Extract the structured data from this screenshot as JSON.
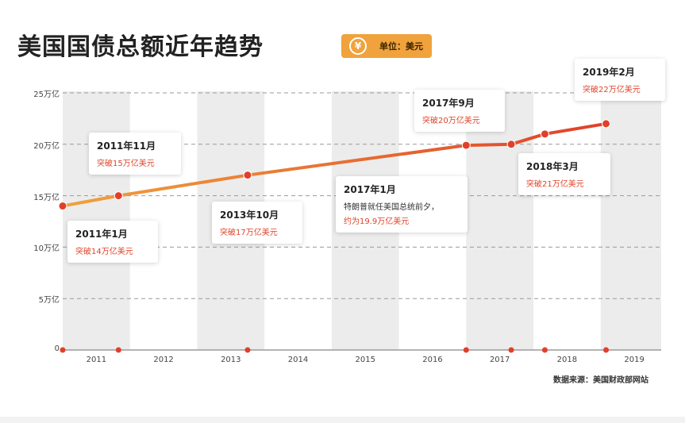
{
  "title": "美国国债总额近年趋势",
  "unit_badge": {
    "coin_icon": "¥",
    "label": "单位：美元",
    "color": "#f0a23c"
  },
  "source": "数据来源：美国财政部网站",
  "chart_data": {
    "type": "line",
    "title": "美国国债总额近年趋势",
    "xlabel": "",
    "ylabel": "",
    "x_ticks": [
      "2011",
      "2012",
      "2013",
      "2014",
      "2015",
      "2016",
      "2017",
      "2018",
      "2019"
    ],
    "y_ticks": [
      "0",
      "5万亿",
      "10万亿",
      "15万亿",
      "20万亿",
      "25万亿"
    ],
    "xlim": [
      2011.0,
      2019.9
    ],
    "ylim": [
      0,
      25
    ],
    "grid": "horizontal dashed",
    "colors": {
      "line_start": "#f0a23c",
      "line_end": "#e0402a",
      "point": "#e0402a",
      "band": "#ececec"
    },
    "series": [
      {
        "x": [
          2011.0,
          2011.83,
          2013.75,
          2017.0,
          2017.67,
          2018.17,
          2019.08
        ],
        "y": [
          14,
          15,
          17,
          19.9,
          20,
          21,
          22
        ]
      }
    ],
    "annotations": [
      {
        "date": "2011年1月",
        "text": "突破14万亿美元"
      },
      {
        "date": "2011年11月",
        "text": "突破15万亿美元"
      },
      {
        "date": "2013年10月",
        "text": "突破17万亿美元"
      },
      {
        "date": "2017年1月",
        "text1": "特朗普就任美国总统前夕，",
        "text": "约为19.9万亿美元"
      },
      {
        "date": "2017年9月",
        "text": "突破20万亿美元"
      },
      {
        "date": "2018年3月",
        "text": "突破21万亿美元"
      },
      {
        "date": "2019年2月",
        "text": "突破22万亿美元"
      }
    ]
  }
}
